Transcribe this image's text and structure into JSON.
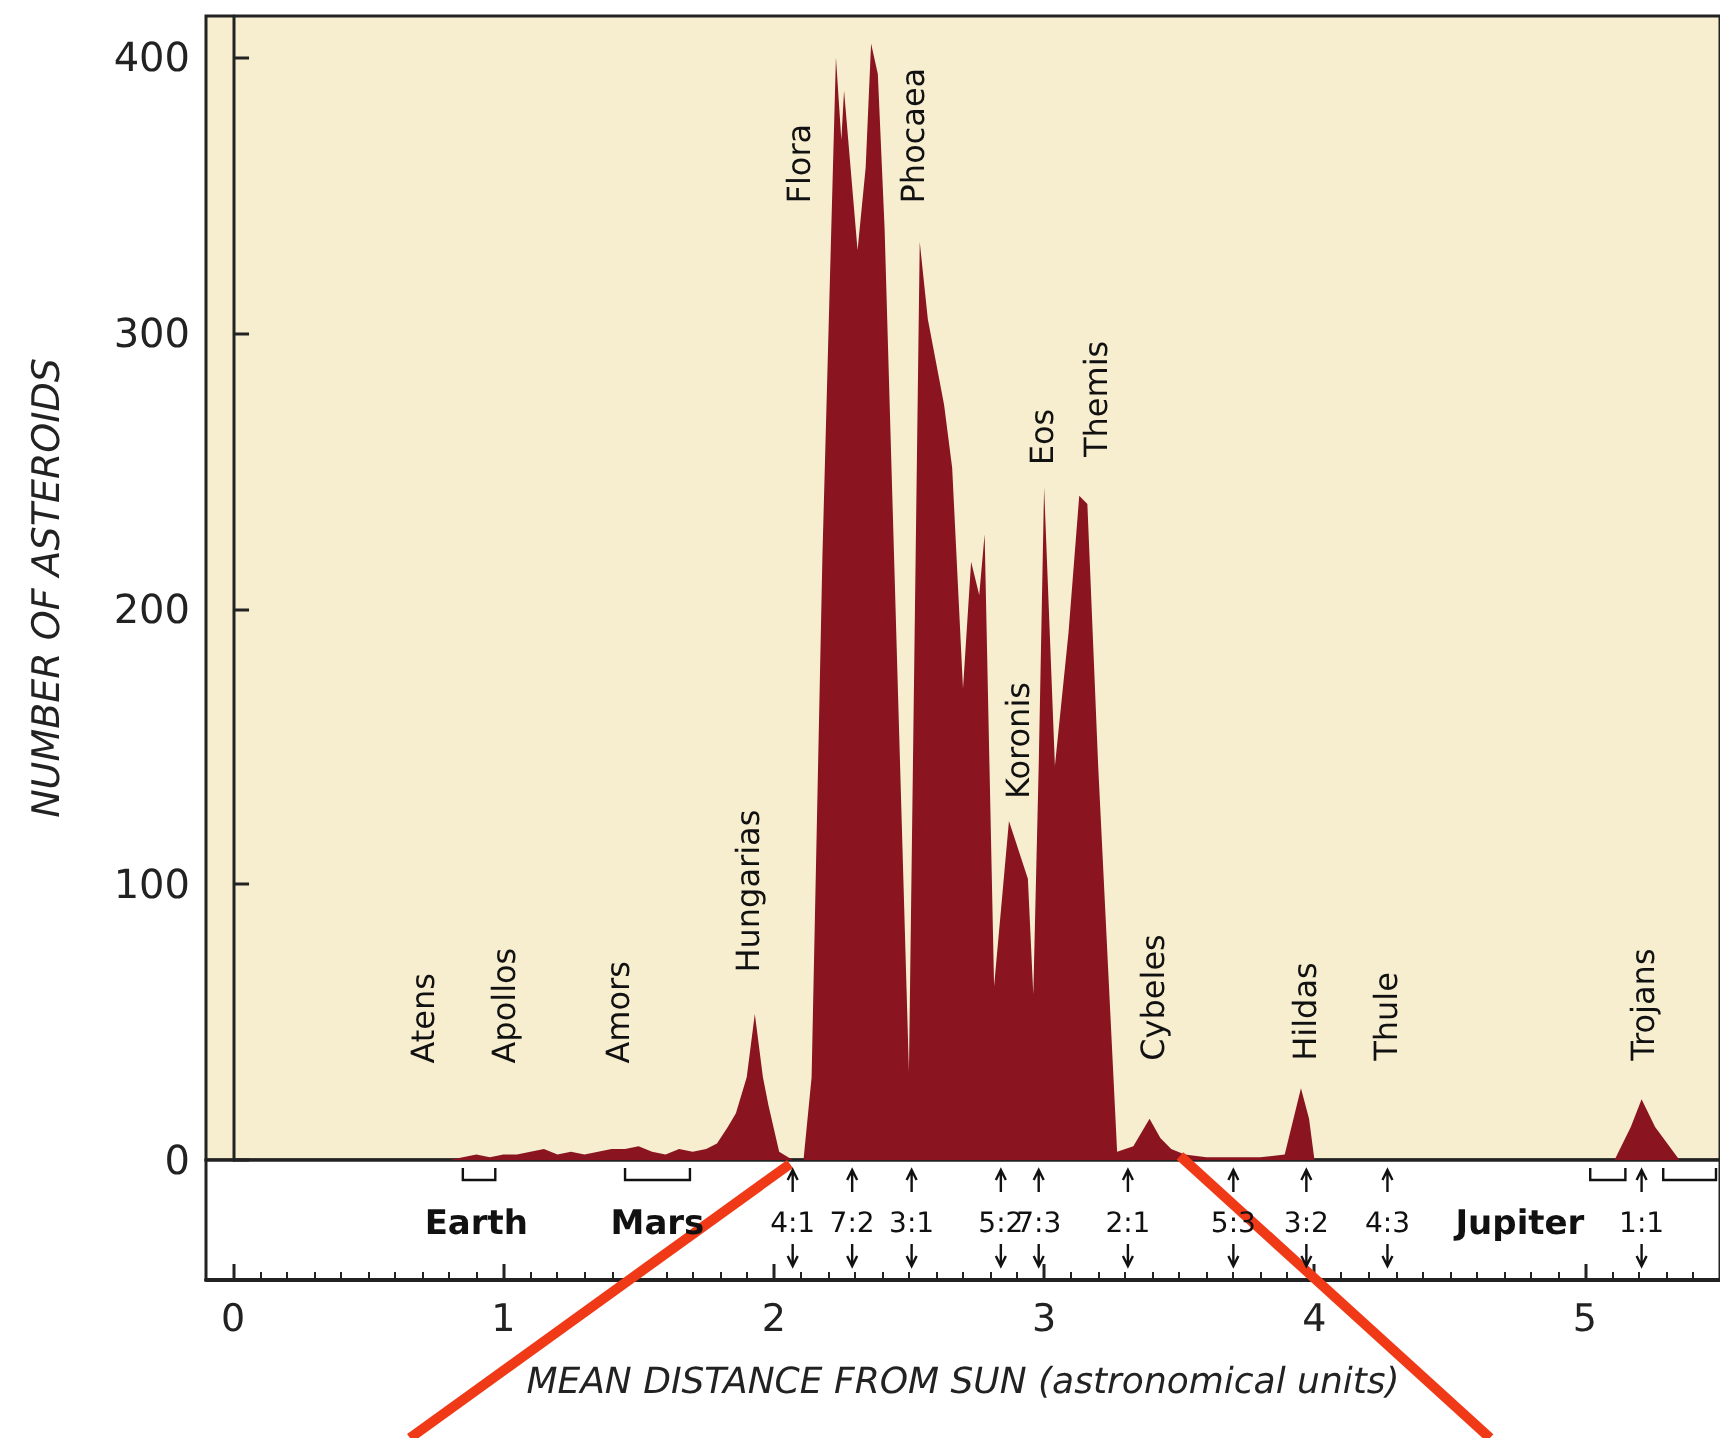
{
  "chart_data": {
    "type": "area",
    "xlabel": "MEAN DISTANCE FROM SUN (astronomical units)",
    "ylabel": "NUMBER OF ASTEROIDS",
    "x": [
      0.8,
      0.85,
      0.9,
      0.95,
      1.0,
      1.05,
      1.1,
      1.15,
      1.2,
      1.25,
      1.3,
      1.35,
      1.4,
      1.45,
      1.5,
      1.55,
      1.6,
      1.65,
      1.7,
      1.75,
      1.79,
      1.83,
      1.86,
      1.9,
      1.93,
      1.96,
      1.98,
      2.02,
      2.07,
      2.11,
      2.14,
      2.18,
      2.23,
      2.25,
      2.26,
      2.31,
      2.34,
      2.36,
      2.385,
      2.41,
      2.5,
      2.54,
      2.57,
      2.63,
      2.66,
      2.7,
      2.73,
      2.76,
      2.78,
      2.815,
      2.87,
      2.94,
      2.96,
      2.98,
      3.0,
      3.04,
      3.09,
      3.13,
      3.16,
      3.2,
      3.27,
      3.33,
      3.39,
      3.43,
      3.47,
      3.52,
      3.6,
      3.7,
      3.8,
      3.89,
      3.95,
      3.98,
      4.0,
      5.11,
      5.17,
      5.21,
      5.26,
      5.35
    ],
    "series": [
      {
        "color": "#8a1520",
        "values": [
          0,
          1,
          2,
          1,
          2,
          2,
          3,
          4,
          2,
          3,
          2,
          3,
          4,
          4,
          5,
          3,
          2,
          4,
          3,
          4,
          6,
          12,
          17,
          30,
          53,
          30,
          20,
          3,
          0,
          0,
          30,
          219,
          400,
          370,
          388,
          330,
          360,
          405,
          394,
          338,
          32,
          333,
          305,
          274,
          251,
          171,
          217,
          205,
          227,
          63,
          123,
          102,
          60,
          143,
          244,
          143,
          191,
          241,
          238,
          143,
          3,
          5,
          15,
          8,
          4,
          2,
          1,
          1,
          1,
          2,
          26,
          15,
          0,
          0,
          12,
          22,
          12,
          0
        ]
      }
    ],
    "xlim": [
      -0.1,
      5.5
    ],
    "xticks": [
      0,
      1,
      2,
      3,
      4,
      5
    ],
    "ylim": [
      0,
      415
    ],
    "yticks": [
      0,
      100,
      200,
      300,
      400
    ],
    "marker": "none",
    "annotations": [
      "Atens",
      "Apollos",
      "Amors",
      "Hungarias",
      "Flora",
      "Phocaea",
      "Koronis",
      "Eos",
      "Themis",
      "Cybeles",
      "Hildas",
      "Thule",
      "Trojans",
      "4:1",
      "7:2",
      "3:1",
      "5:2",
      "7:3",
      "2:1",
      "5:3",
      "3:2",
      "4:3",
      "1:1",
      "Earth",
      "Mars",
      "Jupiter"
    ]
  }
}
